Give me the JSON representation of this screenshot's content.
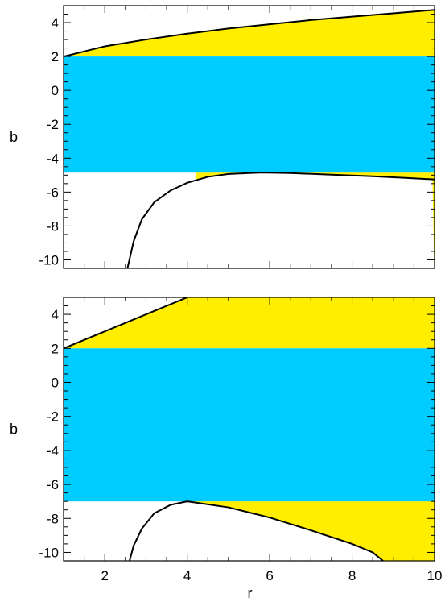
{
  "chart_data": [
    {
      "type": "area",
      "title": "",
      "xlabel": "",
      "ylabel": "b",
      "xlim": [
        1,
        10
      ],
      "ylim": [
        -10.5,
        5
      ],
      "xticks": [
        2,
        4,
        6,
        8,
        10
      ],
      "show_xtick_labels": false,
      "yticks": [
        4,
        2,
        0,
        -2,
        -4,
        -6,
        -8,
        -10
      ],
      "bands": [
        {
          "color": "#00ccff",
          "y_from": -4.85,
          "y_to": 2.0
        }
      ],
      "fills": [
        {
          "color": "#ffee00",
          "between": "upper_curve_and_y",
          "y": 2.0
        },
        {
          "color": "#ffee00",
          "between": "y_and_lower_curve",
          "y": -4.85,
          "x_from": 4.2
        }
      ],
      "series": [
        {
          "points": [
            [
              1.0,
              2.0
            ],
            [
              2.0,
              2.6
            ],
            [
              3.0,
              3.0
            ],
            [
              4.0,
              3.35
            ],
            [
              5.0,
              3.65
            ],
            [
              6.0,
              3.9
            ],
            [
              7.0,
              4.15
            ],
            [
              8.0,
              4.35
            ],
            [
              9.0,
              4.55
            ],
            [
              10.0,
              4.75
            ]
          ]
        },
        {
          "points": [
            [
              2.55,
              -10.5
            ],
            [
              2.7,
              -8.9
            ],
            [
              2.9,
              -7.6
            ],
            [
              3.2,
              -6.6
            ],
            [
              3.6,
              -5.9
            ],
            [
              4.0,
              -5.45
            ],
            [
              4.5,
              -5.1
            ],
            [
              5.0,
              -4.93
            ],
            [
              5.8,
              -4.85
            ],
            [
              6.5,
              -4.88
            ],
            [
              7.5,
              -4.97
            ],
            [
              8.5,
              -5.07
            ],
            [
              10.0,
              -5.25
            ]
          ]
        }
      ]
    },
    {
      "type": "area",
      "title": "",
      "xlabel": "r",
      "ylabel": "b",
      "xlim": [
        1,
        10
      ],
      "ylim": [
        -10.5,
        5
      ],
      "xticks": [
        2,
        4,
        6,
        8,
        10
      ],
      "show_xtick_labels": true,
      "yticks": [
        4,
        2,
        0,
        -2,
        -4,
        -6,
        -8,
        -10
      ],
      "bands": [
        {
          "color": "#00ccff",
          "y_from": -7.0,
          "y_to": 2.0
        }
      ],
      "fills": [
        {
          "color": "#ffee00",
          "between": "upper_curve_and_y",
          "y": 2.0
        },
        {
          "color": "#ffee00",
          "between": "y_and_lower_curve",
          "y": -7.0,
          "x_from": 4.0
        }
      ],
      "series": [
        {
          "points": [
            [
              1.0,
              2.0
            ],
            [
              4.0,
              5.0
            ]
          ]
        },
        {
          "points": [
            [
              2.6,
              -10.5
            ],
            [
              2.7,
              -9.6
            ],
            [
              2.9,
              -8.6
            ],
            [
              3.2,
              -7.7
            ],
            [
              3.6,
              -7.2
            ],
            [
              4.0,
              -7.0
            ],
            [
              5.0,
              -7.35
            ],
            [
              6.0,
              -7.95
            ],
            [
              7.0,
              -8.7
            ],
            [
              8.0,
              -9.5
            ],
            [
              8.5,
              -10.0
            ],
            [
              8.75,
              -10.5
            ]
          ]
        }
      ]
    }
  ]
}
